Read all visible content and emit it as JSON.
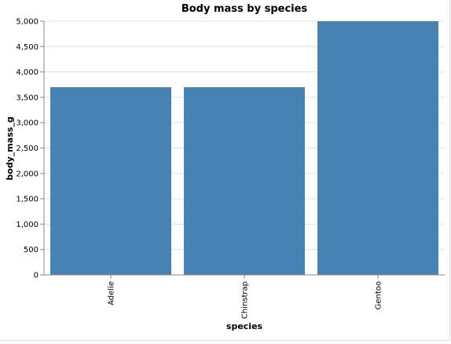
{
  "chart_data": {
    "type": "bar",
    "title": "Body mass by species",
    "xlabel": "species",
    "ylabel": "body_mass_g",
    "categories": [
      "Adelie",
      "Chinstrap",
      "Gentoo"
    ],
    "values": [
      3700,
      3700,
      5000
    ],
    "ylim": [
      0,
      5000
    ],
    "yticks": [
      0,
      500,
      1000,
      1500,
      2000,
      2500,
      3000,
      3500,
      4000,
      4500,
      5000
    ],
    "ytick_labels": [
      "0",
      "500",
      "1,000",
      "1,500",
      "2,000",
      "2,500",
      "3,000",
      "3,500",
      "4,000",
      "4,500",
      "5,000"
    ],
    "grid": true,
    "bar_color": "#4682b4"
  }
}
